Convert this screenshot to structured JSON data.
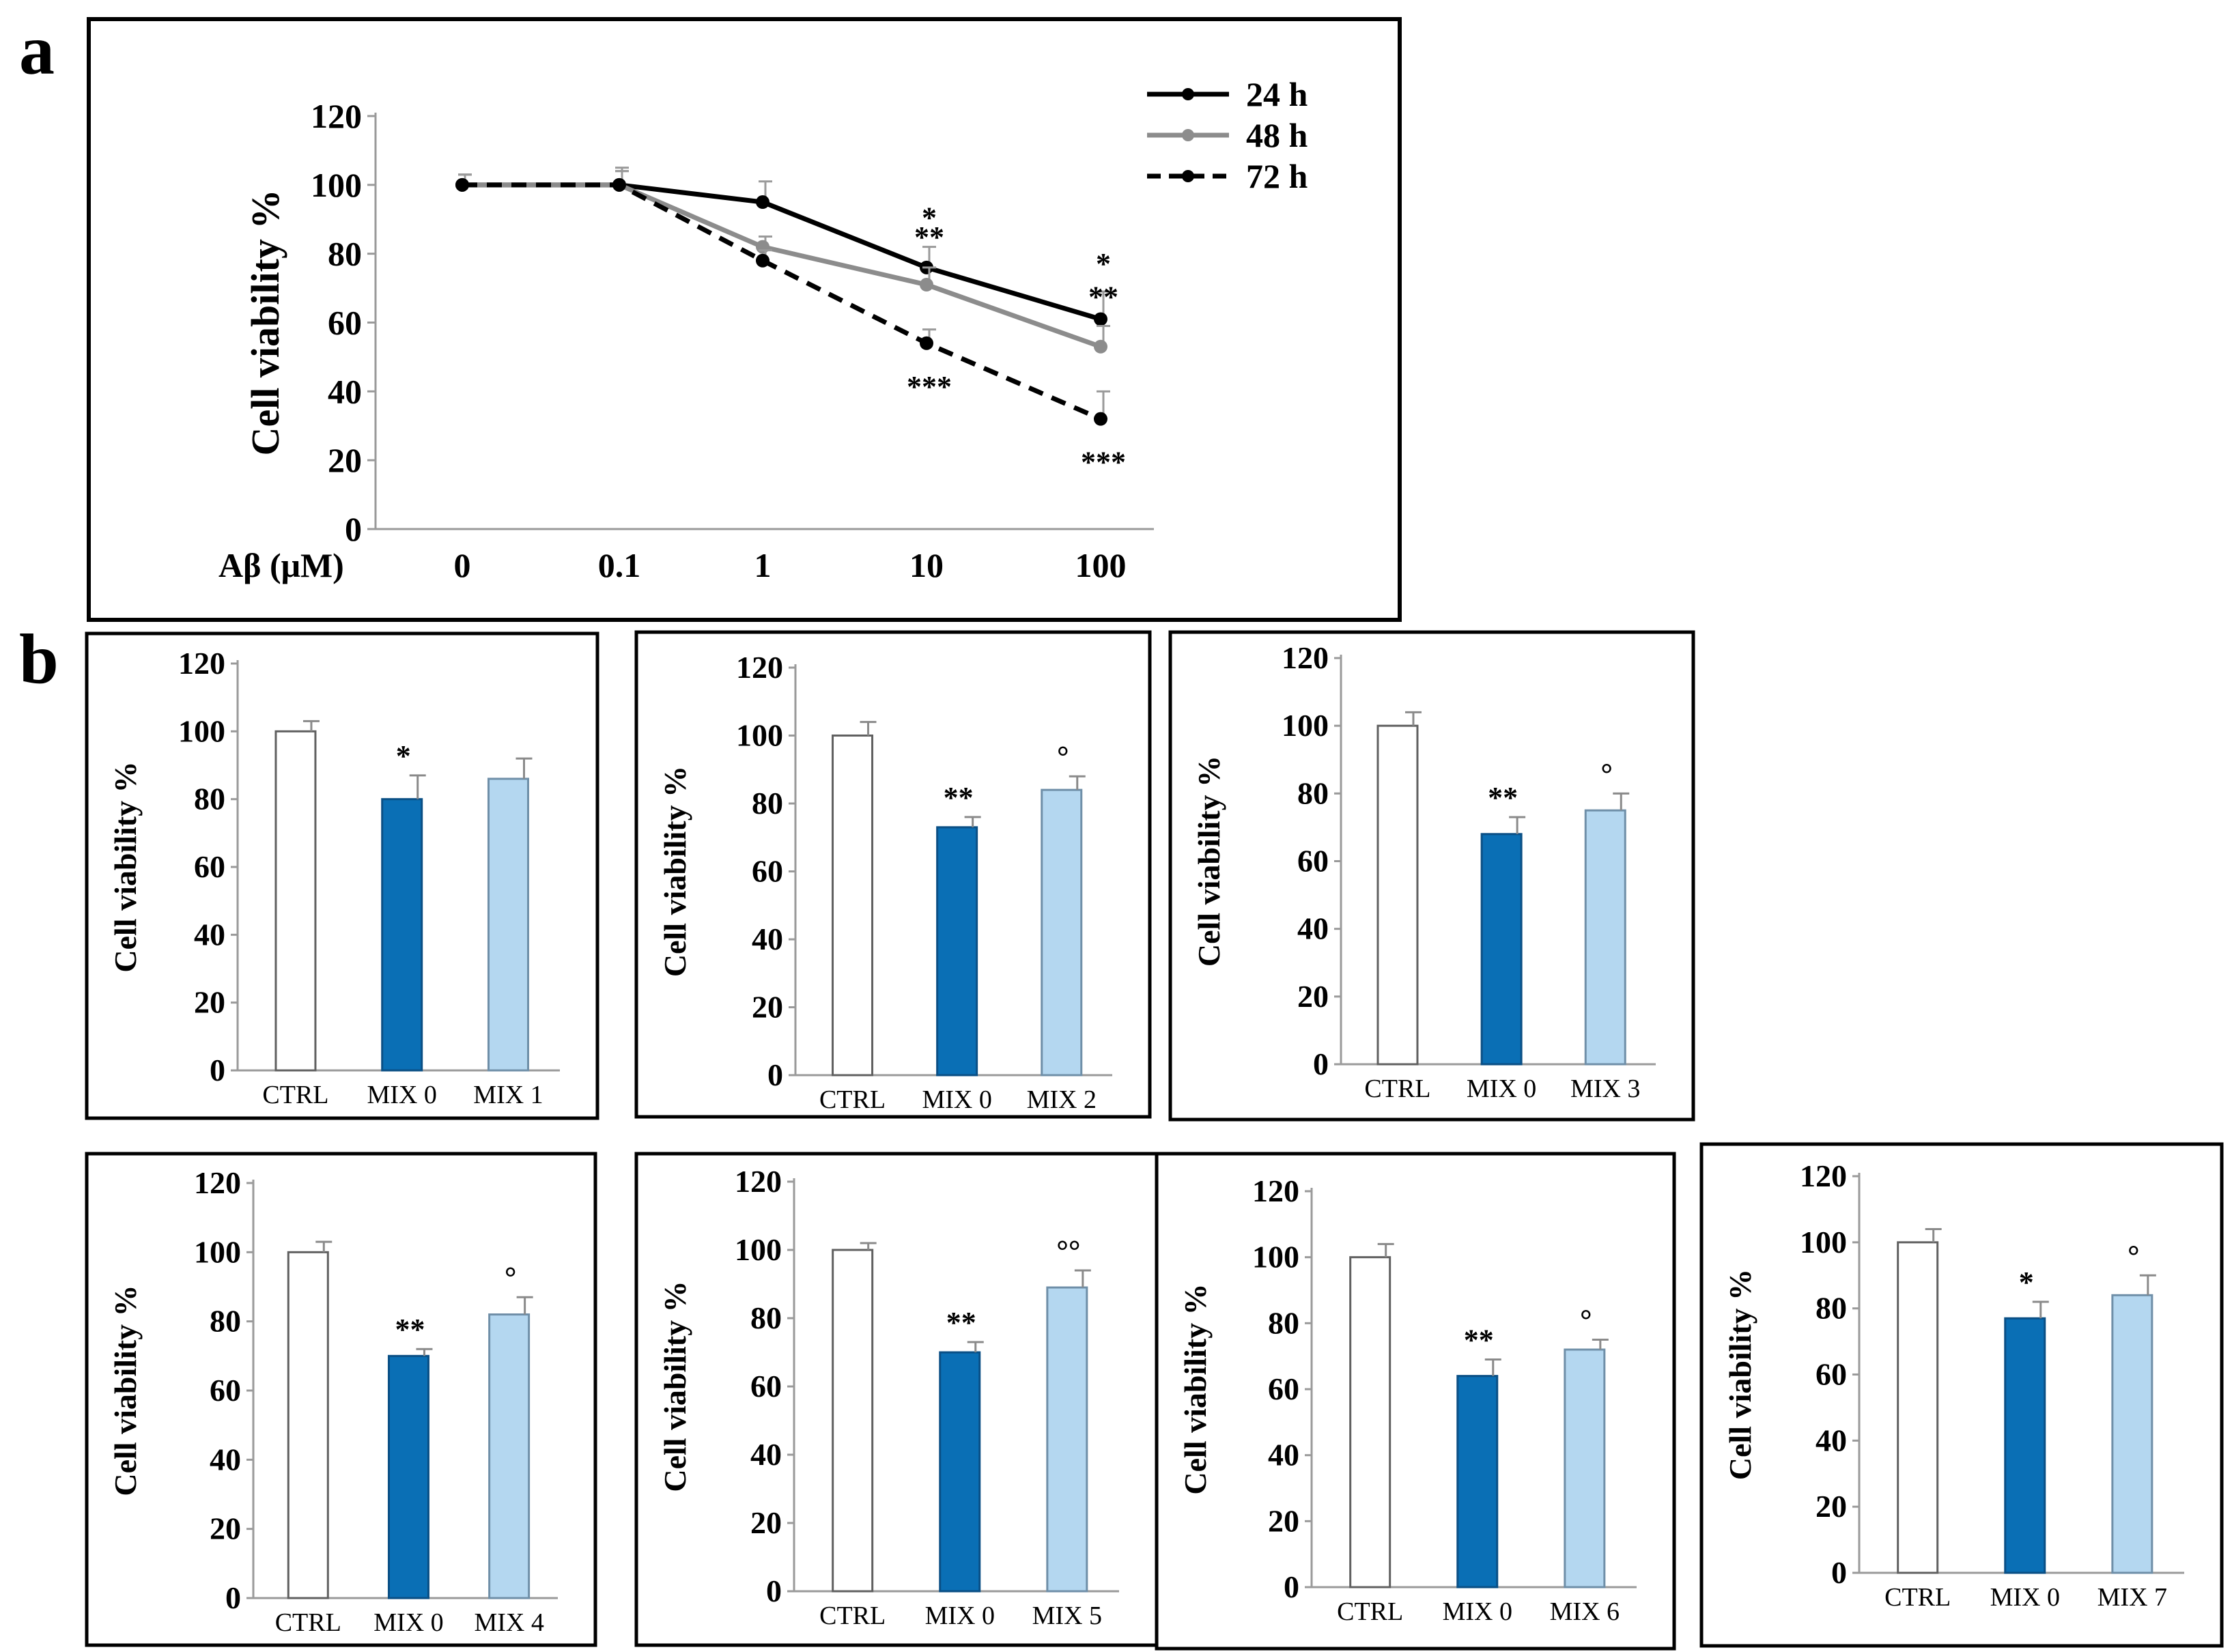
{
  "panel_labels": [
    "a",
    "b"
  ],
  "colors": {
    "24h": "#000000",
    "48h": "#8c8c8c",
    "72h": "#000000",
    "ctrl": "#ffffff",
    "mix0": "#0a6fb5",
    "mix_treat": "#b4d7f0"
  },
  "chart_data": [
    {
      "panel": "a",
      "type": "line",
      "xlabel": "Aβ (μM)",
      "ylabel": "Cell viability %",
      "categories": [
        "0",
        "0.1",
        "1",
        "10",
        "100"
      ],
      "ylim": [
        0,
        120
      ],
      "yticks": [
        0,
        20,
        40,
        60,
        80,
        100,
        120
      ],
      "legend_position": "top-right",
      "series": [
        {
          "name": "24 h",
          "style": "solid",
          "values": [
            100,
            100,
            95,
            76,
            61
          ],
          "errors": [
            3,
            5,
            6,
            6,
            8
          ],
          "annotations": [
            "",
            "",
            "",
            "*",
            "*"
          ]
        },
        {
          "name": "48 h",
          "style": "solid",
          "values": [
            100,
            100,
            82,
            71,
            53
          ],
          "errors": [
            3,
            4,
            3,
            5,
            6
          ],
          "annotations": [
            "",
            "",
            "",
            "**",
            "**"
          ]
        },
        {
          "name": "72 h",
          "style": "dashed",
          "values": [
            100,
            100,
            78,
            54,
            32
          ],
          "errors": [
            3,
            4,
            3,
            4,
            8
          ],
          "annotations": [
            "",
            "",
            "",
            "***",
            "***"
          ]
        }
      ]
    },
    {
      "panel": "b1",
      "type": "bar",
      "ylabel": "Cell viability %",
      "ylim": [
        0,
        120
      ],
      "yticks": [
        0,
        20,
        40,
        60,
        80,
        100,
        120
      ],
      "categories": [
        "CTRL",
        "MIX 0",
        "MIX 1"
      ],
      "values": [
        100,
        80,
        86
      ],
      "errors": [
        3,
        7,
        6
      ],
      "annotations": [
        "",
        "*",
        ""
      ]
    },
    {
      "panel": "b2",
      "type": "bar",
      "ylabel": "Cell viability %",
      "ylim": [
        0,
        120
      ],
      "yticks": [
        0,
        20,
        40,
        60,
        80,
        100,
        120
      ],
      "categories": [
        "CTRL",
        "MIX 0",
        "MIX 2"
      ],
      "values": [
        100,
        73,
        84
      ],
      "errors": [
        4,
        3,
        4
      ],
      "annotations": [
        "",
        "**",
        "°"
      ]
    },
    {
      "panel": "b3",
      "type": "bar",
      "ylabel": "Cell viability %",
      "ylim": [
        0,
        120
      ],
      "yticks": [
        0,
        20,
        40,
        60,
        80,
        100,
        120
      ],
      "categories": [
        "CTRL",
        "MIX 0",
        "MIX 3"
      ],
      "values": [
        100,
        68,
        75
      ],
      "errors": [
        4,
        5,
        5
      ],
      "annotations": [
        "",
        "**",
        "°"
      ]
    },
    {
      "panel": "b4",
      "type": "bar",
      "ylabel": "Cell viability %",
      "ylim": [
        0,
        120
      ],
      "yticks": [
        0,
        20,
        40,
        60,
        80,
        100,
        120
      ],
      "categories": [
        "CTRL",
        "MIX 0",
        "MIX 4"
      ],
      "values": [
        100,
        70,
        82
      ],
      "errors": [
        3,
        2,
        5
      ],
      "annotations": [
        "",
        "**",
        "°"
      ]
    },
    {
      "panel": "b5",
      "type": "bar",
      "ylabel": "Cell viability %",
      "ylim": [
        0,
        120
      ],
      "yticks": [
        0,
        20,
        40,
        60,
        80,
        100,
        120
      ],
      "categories": [
        "CTRL",
        "MIX 0",
        "MIX 5"
      ],
      "values": [
        100,
        70,
        89
      ],
      "errors": [
        2,
        3,
        5
      ],
      "annotations": [
        "",
        "**",
        "°°"
      ]
    },
    {
      "panel": "b6",
      "type": "bar",
      "ylabel": "Cell viability %",
      "ylim": [
        0,
        120
      ],
      "yticks": [
        0,
        20,
        40,
        60,
        80,
        100,
        120
      ],
      "categories": [
        "CTRL",
        "MIX 0",
        "MIX 6"
      ],
      "values": [
        100,
        64,
        72
      ],
      "errors": [
        4,
        5,
        3
      ],
      "annotations": [
        "",
        "**",
        "°"
      ]
    },
    {
      "panel": "b7",
      "type": "bar",
      "ylabel": "Cell viability %",
      "ylim": [
        0,
        120
      ],
      "yticks": [
        0,
        20,
        40,
        60,
        80,
        100,
        120
      ],
      "categories": [
        "CTRL",
        "MIX 0",
        "MIX 7"
      ],
      "values": [
        100,
        77,
        84
      ],
      "errors": [
        4,
        5,
        6
      ],
      "annotations": [
        "",
        "*",
        "°"
      ]
    }
  ]
}
